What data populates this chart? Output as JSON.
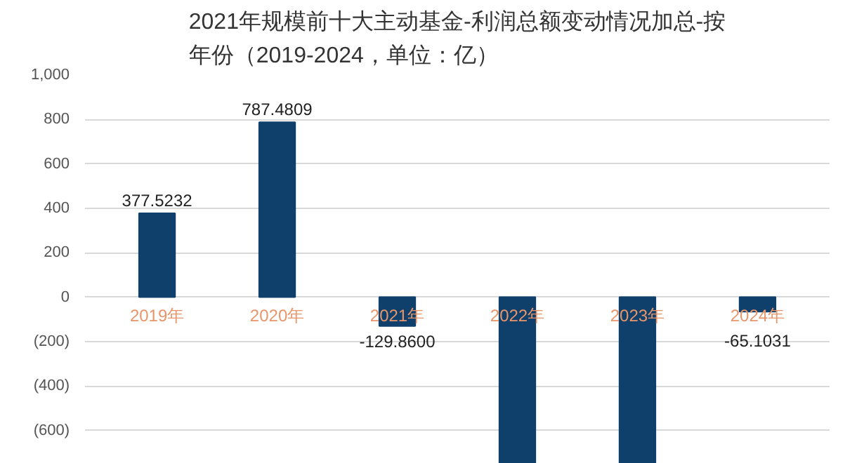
{
  "chart_data": {
    "type": "bar",
    "title": "2021年规模前十大主动基金-利润总额变动情况加总-按年份（2019-2024，单位：亿）",
    "categories": [
      "2019年",
      "2020年",
      "2021年",
      "2022年",
      "2023年",
      "2024年"
    ],
    "values": [
      377.5232,
      787.4809,
      -129.86,
      -750,
      -750,
      -65.1031
    ],
    "value_labels": [
      "377.5232",
      "787.4809",
      "-129.8600",
      null,
      null,
      "-65.1031"
    ],
    "color": "#0f3f6b",
    "ylim": [
      -750,
      1000
    ],
    "yticks": [
      {
        "value": 1000,
        "label": "1,000"
      },
      800,
      600,
      400,
      200,
      0,
      {
        "value": -200,
        "label": "(200)"
      },
      {
        "value": -400,
        "label": "(400)"
      },
      {
        "value": -600,
        "label": "(600)"
      }
    ],
    "grid": "y"
  }
}
